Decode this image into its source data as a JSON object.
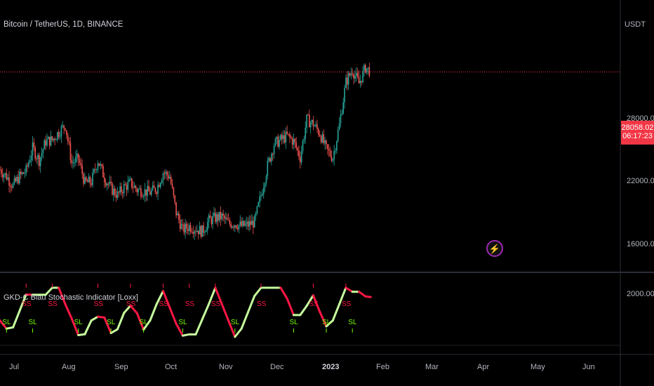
{
  "header": {
    "symbol_title": "Bitcoin / TetherUS, 1D, BINANCE",
    "currency": "USDT"
  },
  "price_axis": {
    "ticks": [
      "28000.00",
      "22000.00",
      "16000.00"
    ],
    "last_price": "28058.02",
    "countdown": "06:17:23"
  },
  "indicator": {
    "title": "GKD-C Blau Stochastic Indicator [Loxx]",
    "axis_tick": "2000.00",
    "short_label": "SS",
    "long_label": "SL"
  },
  "time_axis": [
    "Jul",
    "Aug",
    "Sep",
    "Oct",
    "Nov",
    "Dec",
    "2023",
    "Feb",
    "Mar",
    "Apr",
    "May",
    "Jun"
  ],
  "colors": {
    "up": "#26a69a",
    "down": "#ef5350",
    "price_line": "#f23645",
    "osc_up": "#c6ff9e",
    "osc_down": "#ff1744",
    "signal_ss": "#ff1744",
    "signal_sl": "#76ff03"
  },
  "chart_data": {
    "type": "line",
    "title": "Bitcoin / TetherUS, 1D, BINANCE",
    "x": [
      "2022-06-26",
      "2022-07-01",
      "2022-07-06",
      "2022-07-11",
      "2022-07-16",
      "2022-07-21",
      "2022-07-26",
      "2022-07-31",
      "2022-08-05",
      "2022-08-10",
      "2022-08-15",
      "2022-08-20",
      "2022-08-25",
      "2022-08-30",
      "2022-09-04",
      "2022-09-09",
      "2022-09-14",
      "2022-09-19",
      "2022-09-24",
      "2022-09-29",
      "2022-10-04",
      "2022-10-09",
      "2022-10-14",
      "2022-10-19",
      "2022-10-24",
      "2022-10-29",
      "2022-11-03",
      "2022-11-08",
      "2022-11-13",
      "2022-11-18",
      "2022-11-23",
      "2022-11-28",
      "2022-12-03",
      "2022-12-08",
      "2022-12-13",
      "2022-12-18",
      "2022-12-23",
      "2022-12-28",
      "2023-01-02",
      "2023-01-07",
      "2023-01-12",
      "2023-01-17",
      "2023-01-22",
      "2023-01-27",
      "2023-02-01",
      "2023-02-06",
      "2023-02-11",
      "2023-02-16",
      "2023-02-21",
      "2023-02-26",
      "2023-03-03",
      "2023-03-08",
      "2023-03-13",
      "2023-03-18",
      "2023-03-23",
      "2023-03-28",
      "2023-04-02",
      "2023-04-06"
    ],
    "series": [
      {
        "name": "",
        "values": [
          20800,
          20300,
          19600,
          20300,
          20700,
          22400,
          21500,
          22900,
          23000,
          23600,
          24100,
          21300,
          21600,
          19800,
          19900,
          21500,
          20200,
          19400,
          18900,
          19500,
          19800,
          19300,
          19200,
          19100,
          19400,
          20600,
          20300,
          17600,
          16300,
          16600,
          16400,
          16200,
          17000,
          17200,
          17300,
          16800,
          16800,
          16600,
          16700,
          16900,
          18900,
          21100,
          22700,
          23000,
          23300,
          22900,
          21700,
          24500,
          24200,
          23500,
          22300,
          21700,
          24100,
          27300,
          28200,
          27200,
          28400,
          28058
        ]
      }
    ],
    "ylim": [
      14000,
      32000
    ],
    "ylabel": "USDT",
    "yticks": [
      16000,
      22000,
      28000
    ],
    "last_price": 28058.02,
    "xlabels": [
      "Jul",
      "Aug",
      "Sep",
      "Oct",
      "Nov",
      "Dec",
      "2023",
      "Feb",
      "Mar",
      "Apr",
      "May",
      "Jun"
    ]
  }
}
